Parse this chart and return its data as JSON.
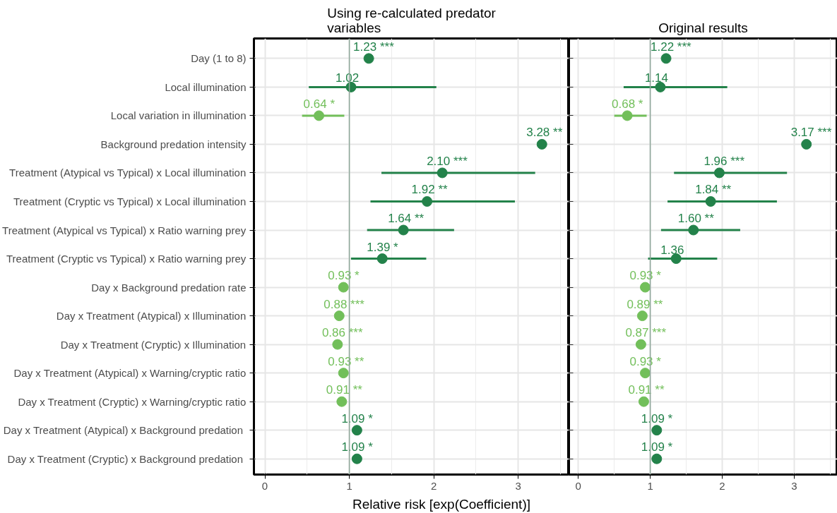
{
  "chart_data": [
    {
      "type": "scatter",
      "orientation": "horizontal",
      "title": "Using re-calculated predator\nvariables",
      "xlabel": "Relative risk [exp(Coefficient)]",
      "categories": [
        "Day (1 to 8)",
        "Local illumination",
        "Local variation in illumination",
        "Background predation intensity",
        "Treatment (Atypical vs Typical) x Local illumination",
        "Treatment (Cryptic vs Typical) x Local illumination",
        "Treatment (Atypical vs Typical) x Ratio warning prey",
        "Treatment (Cryptic vs Typical) x Ratio warning prey",
        "Day x Background predation rate",
        "Day x Treatment (Atypical) x Illumination",
        "Day x Treatment (Cryptic) x Illumination",
        "Day x Treatment (Atypical) x Warning/cryptic ratio",
        "Day x Treatment (Cryptic) x Warning/cryptic ratio",
        "Day x Treatment (Atypical) x  Background predation",
        "Day x Treatment (Cryptic) x  Background predation"
      ],
      "values": [
        1.23,
        1.02,
        0.64,
        3.28,
        2.1,
        1.92,
        1.64,
        1.39,
        0.93,
        0.88,
        0.86,
        0.93,
        0.91,
        1.09,
        1.09
      ],
      "errors": [
        null,
        [
          0.52,
          2.03
        ],
        [
          0.44,
          0.94
        ],
        null,
        [
          1.38,
          3.2
        ],
        [
          1.25,
          2.96
        ],
        [
          1.21,
          2.24
        ],
        [
          1.02,
          1.91
        ],
        null,
        null,
        null,
        null,
        null,
        null,
        null
      ],
      "value_labels": [
        "1.23 ***",
        "1.02",
        "0.64 *",
        "3.28 **",
        "2.10 ***",
        "1.92 **",
        "1.64 **",
        "1.39 *",
        "0.93 *",
        "0.88 ***",
        "0.86 ***",
        "0.93 **",
        "0.91 **",
        "1.09 *",
        "1.09 *"
      ],
      "colors": [
        "#23824a",
        "#23824a",
        "#72bf5a",
        "#23824a",
        "#23824a",
        "#23824a",
        "#23824a",
        "#23824a",
        "#72bf5a",
        "#72bf5a",
        "#72bf5a",
        "#72bf5a",
        "#72bf5a",
        "#23824a",
        "#23824a"
      ],
      "xlim": [
        -0.13,
        3.6
      ],
      "xticks": [
        0,
        1,
        2,
        3
      ],
      "ref_lines": [
        {
          "axis": "x",
          "value": 1,
          "color": "#8fa89b"
        }
      ],
      "grid": true,
      "marker": "circle"
    },
    {
      "type": "scatter",
      "orientation": "horizontal",
      "title": "Original results",
      "tick_labels": "x",
      "categories": [
        null,
        null,
        null,
        null,
        null,
        null,
        null,
        null,
        null,
        null,
        null,
        null,
        null,
        null,
        null
      ],
      "values": [
        1.22,
        1.14,
        0.68,
        3.17,
        1.96,
        1.84,
        1.6,
        1.36,
        0.93,
        0.89,
        0.87,
        0.93,
        0.91,
        1.09,
        1.09
      ],
      "errors": [
        null,
        [
          0.63,
          2.07
        ],
        [
          0.5,
          0.95
        ],
        null,
        [
          1.33,
          2.9
        ],
        [
          1.24,
          2.76
        ],
        [
          1.15,
          2.25
        ],
        [
          0.97,
          1.93
        ],
        null,
        null,
        null,
        null,
        null,
        null,
        null
      ],
      "value_labels": [
        "1.22 ***",
        "1.14",
        "0.68 *",
        "3.17 ***",
        "1.96 ***",
        "1.84 **",
        "1.60 **",
        "1.36",
        "0.93 *",
        "0.89 **",
        "0.87 ***",
        "0.93 *",
        "0.91 **",
        "1.09 *",
        "1.09 *"
      ],
      "colors": [
        "#23824a",
        "#23824a",
        "#72bf5a",
        "#23824a",
        "#23824a",
        "#23824a",
        "#23824a",
        "#23824a",
        "#72bf5a",
        "#72bf5a",
        "#72bf5a",
        "#72bf5a",
        "#72bf5a",
        "#23824a",
        "#23824a"
      ],
      "xlim": [
        -0.13,
        3.6
      ],
      "xticks": [
        0,
        1,
        2,
        3
      ],
      "ref_lines": [
        {
          "axis": "x",
          "value": 1,
          "color": "#8fa89b"
        }
      ],
      "grid": true,
      "marker": "circle"
    }
  ]
}
